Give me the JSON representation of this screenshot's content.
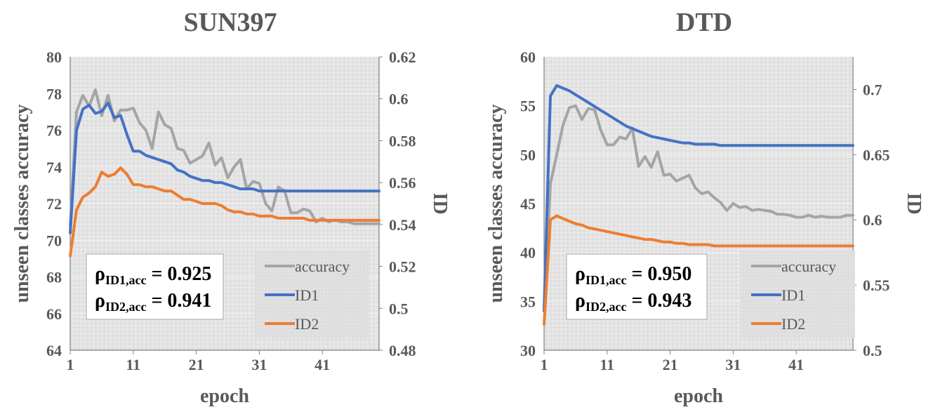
{
  "chart_data": [
    {
      "type": "line",
      "title": "SUN397",
      "xlabel": "epoch",
      "ylabel": "unseen classes accuracy",
      "y2label": "ID",
      "xlim": [
        1,
        50
      ],
      "ylim": [
        64,
        80
      ],
      "y2lim": [
        0.48,
        0.62
      ],
      "xticks": [
        "1",
        "11",
        "21",
        "31",
        "41"
      ],
      "yticks": [
        "64",
        "66",
        "68",
        "70",
        "72",
        "74",
        "76",
        "78",
        "80"
      ],
      "y2ticks": [
        "0.48",
        "0.5",
        "0.52",
        "0.54",
        "0.56",
        "0.58",
        "0.6",
        "0.62"
      ],
      "legend": {
        "placement": "bottom-right",
        "entries": [
          "accuracy",
          "ID1",
          "ID2"
        ]
      },
      "annotation": {
        "rho1_label": "ρ",
        "rho1_sub": "ID1,acc",
        "rho1_value": " = 0.925",
        "rho2_label": "ρ",
        "rho2_sub": "ID2,acc",
        "rho2_value": " = 0.941"
      },
      "x": [
        1,
        2,
        3,
        4,
        5,
        6,
        7,
        8,
        9,
        10,
        11,
        12,
        13,
        14,
        15,
        16,
        17,
        18,
        19,
        20,
        21,
        22,
        23,
        24,
        25,
        26,
        27,
        28,
        29,
        30,
        31,
        32,
        33,
        34,
        35,
        36,
        37,
        38,
        39,
        40,
        41,
        42,
        43,
        44,
        45,
        46,
        47,
        48,
        49,
        50
      ],
      "series": [
        {
          "name": "accuracy",
          "axis": "left",
          "color": "#a5a5a5",
          "values": [
            70.8,
            77.0,
            77.9,
            77.3,
            78.2,
            76.8,
            77.9,
            76.5,
            77.1,
            77.1,
            77.2,
            76.4,
            76.0,
            75.0,
            77.0,
            76.3,
            76.1,
            75.0,
            74.9,
            74.2,
            74.4,
            74.6,
            75.3,
            74.1,
            74.5,
            73.4,
            74.0,
            74.4,
            72.8,
            73.2,
            73.1,
            72.0,
            71.6,
            72.9,
            72.7,
            71.5,
            71.5,
            71.7,
            71.6,
            71.0,
            71.2,
            71.0,
            71.1,
            71.0,
            71.0,
            70.9,
            70.9,
            70.9,
            70.9,
            70.9
          ]
        },
        {
          "name": "ID1",
          "axis": "right",
          "color": "#4472c4",
          "values": [
            0.536,
            0.585,
            0.595,
            0.597,
            0.593,
            0.594,
            0.598,
            0.591,
            0.592,
            0.583,
            0.575,
            0.575,
            0.573,
            0.572,
            0.571,
            0.57,
            0.569,
            0.566,
            0.565,
            0.563,
            0.562,
            0.561,
            0.561,
            0.56,
            0.56,
            0.559,
            0.558,
            0.557,
            0.557,
            0.557,
            0.556,
            0.556,
            0.556,
            0.556,
            0.556,
            0.556,
            0.556,
            0.556,
            0.556,
            0.556,
            0.556,
            0.556,
            0.556,
            0.556,
            0.556,
            0.556,
            0.556,
            0.556,
            0.556,
            0.556
          ]
        },
        {
          "name": "ID2",
          "axis": "right",
          "color": "#ed7d31",
          "values": [
            0.525,
            0.547,
            0.553,
            0.555,
            0.558,
            0.565,
            0.563,
            0.564,
            0.567,
            0.564,
            0.559,
            0.559,
            0.558,
            0.558,
            0.557,
            0.556,
            0.556,
            0.554,
            0.552,
            0.552,
            0.551,
            0.55,
            0.55,
            0.55,
            0.549,
            0.547,
            0.546,
            0.546,
            0.545,
            0.545,
            0.544,
            0.544,
            0.544,
            0.543,
            0.543,
            0.543,
            0.543,
            0.543,
            0.542,
            0.542,
            0.542,
            0.542,
            0.542,
            0.542,
            0.542,
            0.542,
            0.542,
            0.542,
            0.542,
            0.542
          ]
        }
      ]
    },
    {
      "type": "line",
      "title": "DTD",
      "xlabel": "epoch",
      "ylabel": "unseen classes accuracy",
      "y2label": "ID",
      "xlim": [
        1,
        50
      ],
      "ylim": [
        30,
        60
      ],
      "y2lim": [
        0.5,
        0.725
      ],
      "xticks": [
        "1",
        "11",
        "21",
        "31",
        "41"
      ],
      "yticks": [
        "30",
        "35",
        "40",
        "45",
        "50",
        "55",
        "60"
      ],
      "y2ticks": [
        "0.5",
        "0.55",
        "0.6",
        "0.65",
        "0.7"
      ],
      "legend": {
        "placement": "bottom-right",
        "entries": [
          "accuracy",
          "ID1",
          "ID2"
        ]
      },
      "annotation": {
        "rho1_label": "ρ",
        "rho1_sub": "ID1,acc",
        "rho1_value": " = 0.950",
        "rho2_label": "ρ",
        "rho2_sub": "ID2,acc",
        "rho2_value": " = 0.943"
      },
      "x": [
        1,
        2,
        3,
        4,
        5,
        6,
        7,
        8,
        9,
        10,
        11,
        12,
        13,
        14,
        15,
        16,
        17,
        18,
        19,
        20,
        21,
        22,
        23,
        24,
        25,
        26,
        27,
        28,
        29,
        30,
        31,
        32,
        33,
        34,
        35,
        36,
        37,
        38,
        39,
        40,
        41,
        42,
        43,
        44,
        45,
        46,
        47,
        48,
        49,
        50
      ],
      "series": [
        {
          "name": "accuracy",
          "axis": "left",
          "color": "#a5a5a5",
          "values": [
            34.0,
            47.0,
            50.0,
            53.0,
            54.8,
            55.0,
            53.6,
            54.7,
            54.6,
            52.5,
            51.0,
            51.0,
            51.8,
            51.6,
            52.7,
            48.8,
            49.8,
            48.7,
            50.3,
            47.9,
            48.0,
            47.3,
            47.6,
            47.9,
            46.6,
            46.0,
            46.2,
            45.6,
            45.1,
            44.3,
            45.0,
            44.6,
            44.7,
            44.3,
            44.4,
            44.3,
            44.2,
            43.9,
            43.9,
            43.8,
            43.6,
            43.6,
            43.8,
            43.6,
            43.7,
            43.6,
            43.6,
            43.6,
            43.8,
            43.8
          ]
        },
        {
          "name": "ID1",
          "axis": "right",
          "color": "#4472c4",
          "values": [
            0.53,
            0.695,
            0.703,
            0.701,
            0.699,
            0.696,
            0.693,
            0.69,
            0.687,
            0.684,
            0.681,
            0.678,
            0.675,
            0.672,
            0.67,
            0.668,
            0.666,
            0.664,
            0.663,
            0.662,
            0.661,
            0.66,
            0.659,
            0.659,
            0.658,
            0.658,
            0.658,
            0.658,
            0.657,
            0.657,
            0.657,
            0.657,
            0.657,
            0.657,
            0.657,
            0.657,
            0.657,
            0.657,
            0.657,
            0.657,
            0.657,
            0.657,
            0.657,
            0.657,
            0.657,
            0.657,
            0.657,
            0.657,
            0.657,
            0.657
          ]
        },
        {
          "name": "ID2",
          "axis": "right",
          "color": "#ed7d31",
          "values": [
            0.52,
            0.6,
            0.603,
            0.601,
            0.599,
            0.597,
            0.596,
            0.594,
            0.593,
            0.592,
            0.591,
            0.59,
            0.589,
            0.588,
            0.587,
            0.586,
            0.585,
            0.585,
            0.584,
            0.583,
            0.583,
            0.582,
            0.582,
            0.581,
            0.581,
            0.581,
            0.581,
            0.58,
            0.58,
            0.58,
            0.58,
            0.58,
            0.58,
            0.58,
            0.58,
            0.58,
            0.58,
            0.58,
            0.58,
            0.58,
            0.58,
            0.58,
            0.58,
            0.58,
            0.58,
            0.58,
            0.58,
            0.58,
            0.58,
            0.58
          ]
        }
      ]
    }
  ]
}
